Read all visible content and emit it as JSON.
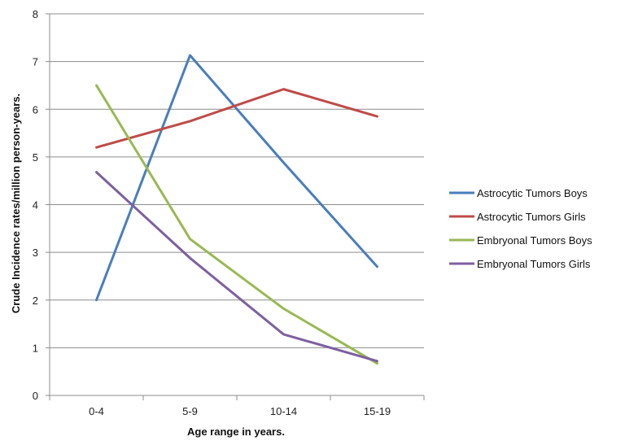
{
  "chart_data": {
    "type": "line",
    "xlabel": "Age range in years.",
    "ylabel": "Crude Incidence rates/million person-years.",
    "categories": [
      "0-4",
      "5-9",
      "10-14",
      "15-19"
    ],
    "ylim": [
      0,
      8
    ],
    "yticks": [
      0,
      1,
      2,
      3,
      4,
      5,
      6,
      7,
      8
    ],
    "grid": true,
    "legend_position": "right",
    "series": [
      {
        "name": "Astrocytic Tumors Boys",
        "color": "#4a7ebb",
        "values": [
          2.0,
          7.13,
          4.88,
          2.7
        ]
      },
      {
        "name": "Astrocytic Tumors Girls",
        "color": "#be4b48",
        "values": [
          5.2,
          5.75,
          6.42,
          5.85
        ]
      },
      {
        "name": "Embryonal Tumors Boys",
        "color": "#98b954",
        "values": [
          6.5,
          3.28,
          1.82,
          0.67
        ]
      },
      {
        "name": "Embryonal Tumors Girls",
        "color": "#7d60a0",
        "values": [
          4.68,
          2.88,
          1.28,
          0.72
        ]
      }
    ]
  }
}
